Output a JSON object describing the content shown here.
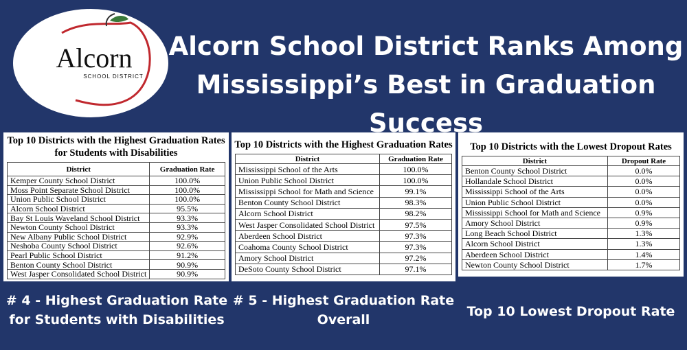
{
  "logo": {
    "name": "Alcorn",
    "subtitle": "SCHOOL DISTRICT"
  },
  "headline": [
    "Alcorn School District Ranks Among",
    "Mississippi’s Best in Graduation Success"
  ],
  "tables": [
    {
      "title": [
        "Top 10 Districts with the Highest Graduation Rates",
        "for Students with Disabilities"
      ],
      "columns": [
        "District",
        "Graduation Rate"
      ],
      "rows": [
        [
          "Kemper County School District",
          "100.0%"
        ],
        [
          "Moss Point Separate School District",
          "100.0%"
        ],
        [
          "Union Public School District",
          "100.0%"
        ],
        [
          "Alcorn School District",
          "95.5%"
        ],
        [
          "Bay St Louis Waveland School District",
          "93.3%"
        ],
        [
          "Newton County School District",
          "93.3%"
        ],
        [
          "New Albany Public School District",
          "92.9%"
        ],
        [
          "Neshoba County School District",
          "92.6%"
        ],
        [
          "Pearl Public School District",
          "91.2%"
        ],
        [
          "Benton County School District",
          "90.9%"
        ],
        [
          "West Jasper Consolidated School District",
          "90.9%"
        ]
      ],
      "caption": [
        "# 4 - Highest Graduation Rate",
        "for Students with Disabilities"
      ]
    },
    {
      "title": [
        "Top 10 Districts with the Highest Graduation Rates"
      ],
      "columns": [
        "District",
        "Graduation Rate"
      ],
      "rows": [
        [
          "Mississippi School of the Arts",
          "100.0%"
        ],
        [
          "Union Public School District",
          "100.0%"
        ],
        [
          "Mississippi School for Math and Science",
          "99.1%"
        ],
        [
          "Benton County School District",
          "98.3%"
        ],
        [
          "Alcorn School District",
          "98.2%"
        ],
        [
          "West Jasper Consolidated School District",
          "97.5%"
        ],
        [
          "Aberdeen School District",
          "97.3%"
        ],
        [
          "Coahoma County School District",
          "97.3%"
        ],
        [
          "Amory School District",
          "97.2%"
        ],
        [
          "DeSoto County School District",
          "97.1%"
        ]
      ],
      "caption": [
        "# 5 - Highest Graduation Rate",
        "Overall"
      ]
    },
    {
      "title": [
        "Top 10 Districts with the Lowest Dropout Rates"
      ],
      "columns": [
        "District",
        "Dropout Rate"
      ],
      "rows": [
        [
          "Benton County School District",
          "0.0%"
        ],
        [
          "Hollandale School District",
          "0.0%"
        ],
        [
          "Mississippi School of the Arts",
          "0.0%"
        ],
        [
          "Union Public School District",
          "0.0%"
        ],
        [
          "Mississippi School for Math and Science",
          "0.9%"
        ],
        [
          "Amory School District",
          "0.9%"
        ],
        [
          "Long Beach School District",
          "1.3%"
        ],
        [
          "Alcorn School District",
          "1.3%"
        ],
        [
          "Aberdeen School District",
          "1.4%"
        ],
        [
          "Newton County School District",
          "1.7%"
        ]
      ],
      "caption": [
        "Top 10 Lowest Dropout Rate"
      ]
    }
  ]
}
